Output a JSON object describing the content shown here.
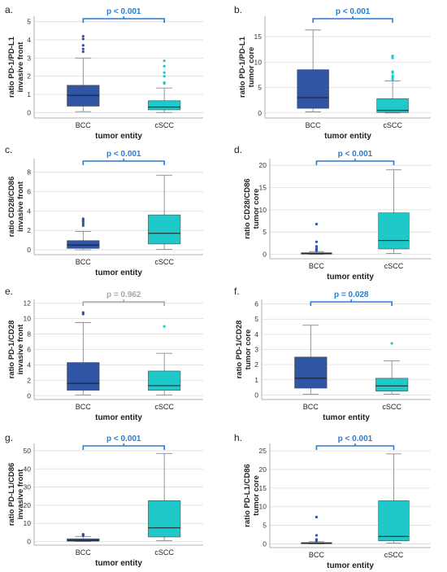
{
  "palette": {
    "bcc": "#2f55a4",
    "cscc": "#1fc9c9",
    "sig": "#2b7bd0",
    "ns": "#a6a6a6",
    "grid": "#dcdcdc",
    "whisker": "#8a8a8a"
  },
  "chart_data": [
    {
      "type": "box",
      "panel": "a.",
      "ylabel_line1": "ratio PD-1/PD-L1",
      "ylabel_line2": "invasive front",
      "xlabel": "tumor entity",
      "ylim": [
        -0.3,
        5.3
      ],
      "yticks": [
        0,
        1,
        2,
        3,
        4,
        5
      ],
      "sig": "p < 0.001",
      "significant": true,
      "categories": [
        "BCC",
        "cSCC"
      ],
      "boxes": [
        {
          "min": 0.05,
          "q1": 0.35,
          "median": 0.95,
          "q3": 1.5,
          "max": 3.0,
          "outliers": [
            3.35,
            3.5,
            3.7,
            4.05,
            4.2
          ]
        },
        {
          "min": 0.0,
          "q1": 0.15,
          "median": 0.3,
          "q3": 0.65,
          "max": 1.35,
          "outliers": [
            1.6,
            1.65,
            2.0,
            2.2,
            2.55,
            2.85
          ]
        }
      ]
    },
    {
      "type": "box",
      "panel": "b.",
      "ylabel_line1": "ratio PD-1/PD-L1",
      "ylabel_line2": "tumor core",
      "xlabel": "tumor entity",
      "ylim": [
        -1,
        19
      ],
      "yticks": [
        0,
        5,
        10,
        15
      ],
      "sig": "p < 0.001",
      "significant": true,
      "categories": [
        "BCC",
        "cSCC"
      ],
      "boxes": [
        {
          "min": 0.2,
          "q1": 0.9,
          "median": 3.0,
          "q3": 8.5,
          "max": 16.3,
          "outliers": []
        },
        {
          "min": 0.0,
          "q1": 0.1,
          "median": 0.5,
          "q3": 2.8,
          "max": 6.3,
          "outliers": [
            6.6,
            7.0,
            7.3,
            7.9,
            8.1,
            10.8,
            11.2
          ]
        }
      ]
    },
    {
      "type": "box",
      "panel": "c.",
      "ylabel_line1": "ratio CD28/CD86",
      "ylabel_line2": "invasive front",
      "xlabel": "tumor entity",
      "ylim": [
        -0.5,
        9.4
      ],
      "yticks": [
        0,
        2,
        4,
        6,
        8
      ],
      "sig": "p < 0.001",
      "significant": true,
      "categories": [
        "BCC",
        "cSCC"
      ],
      "boxes": [
        {
          "min": 0.0,
          "q1": 0.15,
          "median": 0.5,
          "q3": 0.95,
          "max": 1.9,
          "outliers": [
            2.5,
            2.7,
            2.9,
            3.05,
            3.2
          ]
        },
        {
          "min": 0.05,
          "q1": 0.6,
          "median": 1.7,
          "q3": 3.6,
          "max": 7.7,
          "outliers": []
        }
      ]
    },
    {
      "type": "box",
      "panel": "d.",
      "ylabel_line1": "ratio CD28/CD86",
      "ylabel_line2": "tumor core",
      "xlabel": "tumor entity",
      "ylim": [
        -1,
        21.5
      ],
      "yticks": [
        0,
        5,
        10,
        15,
        20
      ],
      "sig": "p < 0.001",
      "significant": true,
      "categories": [
        "BCC",
        "cSCC"
      ],
      "boxes": [
        {
          "min": 0.0,
          "q1": 0.05,
          "median": 0.15,
          "q3": 0.35,
          "max": 0.6,
          "outliers": [
            0.8,
            1.0,
            1.3,
            1.8,
            2.8,
            6.8
          ]
        },
        {
          "min": 0.2,
          "q1": 1.2,
          "median": 3.1,
          "q3": 9.3,
          "max": 19.0,
          "outliers": []
        }
      ]
    },
    {
      "type": "box",
      "panel": "e.",
      "ylabel_line1": "ratio PD-1/CD28",
      "ylabel_line2": "invasive front",
      "xlabel": "tumor entity",
      "ylim": [
        -0.5,
        12.5
      ],
      "yticks": [
        0,
        2,
        4,
        6,
        8,
        10,
        12
      ],
      "sig": "p = 0.962",
      "significant": false,
      "categories": [
        "BCC",
        "cSCC"
      ],
      "boxes": [
        {
          "min": 0.1,
          "q1": 0.7,
          "median": 1.6,
          "q3": 4.3,
          "max": 9.5,
          "outliers": [
            10.6,
            10.8
          ]
        },
        {
          "min": 0.1,
          "q1": 0.7,
          "median": 1.3,
          "q3": 3.2,
          "max": 5.5,
          "outliers": [
            9.0
          ]
        }
      ]
    },
    {
      "type": "box",
      "panel": "f.",
      "ylabel_line1": "ratio PD-1/CD28",
      "ylabel_line2": "tumor core",
      "xlabel": "tumor entity",
      "ylim": [
        -0.3,
        6.3
      ],
      "yticks": [
        0,
        1,
        2,
        3,
        4,
        5,
        6
      ],
      "sig": "p = 0.028",
      "significant": true,
      "categories": [
        "BCC",
        "cSCC"
      ],
      "boxes": [
        {
          "min": 0.05,
          "q1": 0.45,
          "median": 1.1,
          "q3": 2.5,
          "max": 4.6,
          "outliers": []
        },
        {
          "min": 0.05,
          "q1": 0.25,
          "median": 0.6,
          "q3": 1.1,
          "max": 2.25,
          "outliers": [
            3.4
          ]
        }
      ]
    },
    {
      "type": "box",
      "panel": "g.",
      "ylabel_line1": "ratio PD-L1/CD86",
      "ylabel_line2": "invasive front",
      "xlabel": "tumor entity",
      "ylim": [
        -2,
        54
      ],
      "yticks": [
        0,
        10,
        20,
        30,
        40,
        50
      ],
      "sig": "p < 0.001",
      "significant": true,
      "categories": [
        "BCC",
        "cSCC"
      ],
      "boxes": [
        {
          "min": 0.0,
          "q1": 0.2,
          "median": 0.6,
          "q3": 1.5,
          "max": 2.8,
          "outliers": [
            3.2,
            3.6,
            4.0
          ]
        },
        {
          "min": 0.5,
          "q1": 2.5,
          "median": 7.5,
          "q3": 22.5,
          "max": 48.5,
          "outliers": []
        }
      ]
    },
    {
      "type": "box",
      "panel": "h.",
      "ylabel_line1": "ratio PD-L1/CD86",
      "ylabel_line2": "tumor core",
      "xlabel": "tumor entity",
      "ylim": [
        -1,
        27
      ],
      "yticks": [
        0,
        5,
        10,
        15,
        20,
        25
      ],
      "sig": "p < 0.001",
      "significant": true,
      "categories": [
        "BCC",
        "cSCC"
      ],
      "boxes": [
        {
          "min": 0.0,
          "q1": 0.05,
          "median": 0.15,
          "q3": 0.35,
          "max": 0.6,
          "outliers": [
            0.8,
            1.2,
            2.3,
            7.2
          ]
        },
        {
          "min": 0.2,
          "q1": 0.8,
          "median": 2.0,
          "q3": 11.6,
          "max": 24.2,
          "outliers": []
        }
      ]
    }
  ]
}
